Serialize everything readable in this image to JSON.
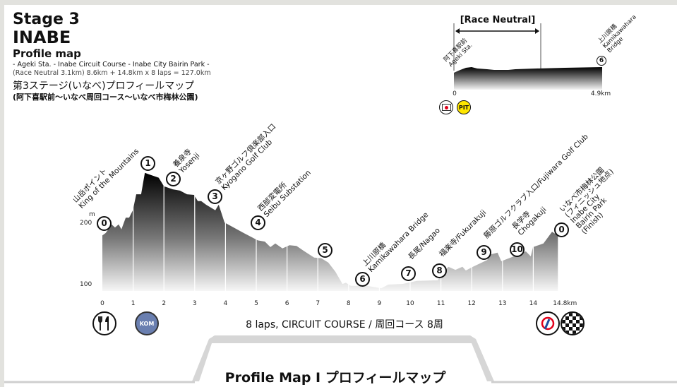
{
  "header": {
    "stage": "Stage 3",
    "city": "INABE",
    "subtitle": "Profile map",
    "route": "- Ageki Sta. - Inabe Circuit Course - Inabe City Bairin Park -",
    "distance": "(Race Neutral 3.1km) 8.6km + 14.8km x 8 laps = 127.0km",
    "jp_title": "第3ステージ(いなべ)プロフィールマップ",
    "jp_route": "(阿下喜駅前〜いなべ周回コース〜いなべ市梅林公園)"
  },
  "neutral": {
    "label": "[Race Neutral]",
    "start_jp": "阿下喜駅前",
    "start_en": "Ageki Sta.",
    "end_num": "6",
    "end_jp": "上川原橋",
    "end_en1": "Kamikawahara",
    "end_en2": "Bridge",
    "x_start": "0",
    "x_end": "4.9km",
    "icons": [
      "start-flag-icon",
      "pit-icon"
    ],
    "pit_label": "PIT"
  },
  "chart_data": {
    "type": "area",
    "xlabel": "",
    "ylabel": "m",
    "x_ticks": [
      "0",
      "1",
      "2",
      "3",
      "4",
      "5",
      "6",
      "7",
      "8",
      "9",
      "10",
      "11",
      "12",
      "13",
      "14",
      "14.8km"
    ],
    "y_ticks": [
      "200",
      "100"
    ],
    "xlim": [
      0,
      14.8
    ],
    "profile_km": [
      0,
      0.11,
      0.3,
      0.41,
      0.53,
      0.62,
      0.76,
      0.87,
      0.99,
      1.1,
      1.26,
      1.38,
      1.54,
      1.83,
      2.0,
      2.29,
      2.52,
      2.75,
      2.98,
      3.1,
      3.21,
      3.37,
      3.67,
      3.78,
      3.97,
      4.59,
      5.05,
      5.28,
      5.46,
      5.62,
      5.85,
      6.08,
      6.31,
      6.54,
      6.88,
      7.11,
      7.34,
      7.57,
      7.8,
      7.91,
      8.07,
      8.6,
      9.06,
      9.29,
      9.75,
      10.21,
      10.89,
      11.01,
      11.24,
      11.47,
      11.7,
      11.81,
      12.04,
      12.5,
      12.61,
      12.84,
      12.96,
      13.42,
      13.76,
      13.92,
      13.99,
      14.33,
      14.61,
      14.8
    ],
    "profile_m": [
      180,
      184,
      198,
      193,
      198,
      190,
      209,
      209,
      221,
      247,
      247,
      282,
      279,
      274,
      260,
      255,
      253,
      247,
      246,
      236,
      236,
      230,
      221,
      230,
      201,
      184,
      172,
      170,
      161,
      167,
      159,
      164,
      163,
      155,
      144,
      143,
      136,
      121,
      101,
      103,
      98,
      98,
      94,
      100,
      101,
      106,
      107,
      115,
      129,
      124,
      129,
      123,
      129,
      140,
      149,
      152,
      138,
      147,
      154,
      146,
      161,
      167,
      186,
      180
    ],
    "waypoints": [
      {
        "num": "0",
        "jp": "",
        "en": ""
      },
      {
        "num": "1",
        "jp": "山岳ポイント",
        "en": "King of the Mountains"
      },
      {
        "num": "2",
        "jp": "養泉寺",
        "en": "Yosenji"
      },
      {
        "num": "3",
        "jp": "京ヶ野ゴルフ倶楽部入口",
        "en": "Kyogano Golf Club"
      },
      {
        "num": "4",
        "jp": "西部変電所",
        "en": "Seibu Substation"
      },
      {
        "num": "5",
        "jp": "",
        "en": ""
      },
      {
        "num": "6",
        "jp": "上川原橋",
        "en": "Kamikawahara Bridge"
      },
      {
        "num": "7",
        "jp": "",
        "en": "長尾/Nagao"
      },
      {
        "num": "8",
        "jp": "",
        "en": "福楽寺/Fukurakuji"
      },
      {
        "num": "9",
        "jp": "",
        "en": "藤原ゴルフクラブ入口/Fujiwara Golf Club"
      },
      {
        "num": "10",
        "jp": "長学寺",
        "en": "Chogakuji"
      },
      {
        "num": "0",
        "lines": [
          "いなべ市梅林公園",
          "(フィニッシュ地点)",
          "Inabe City",
          "Bairin Park",
          "(Finish)"
        ]
      }
    ]
  },
  "course": {
    "laps_label": "8 laps, CIRCUIT COURSE / 周回コース 8周",
    "kom_label": "KOM",
    "icons": [
      "feed-zone-icon",
      "kom-icon",
      "sprint-icon",
      "finish-flag-icon"
    ]
  },
  "footer": {
    "title": "Profile Map I プロフィールマップ"
  }
}
